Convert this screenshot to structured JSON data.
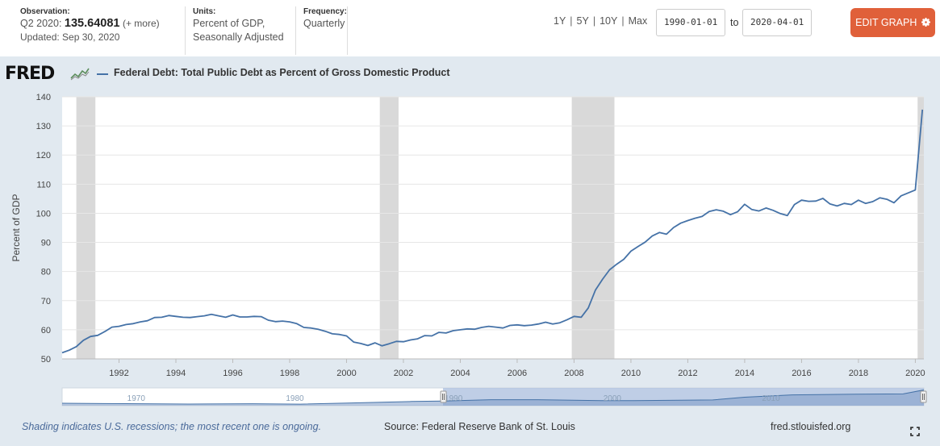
{
  "header": {
    "observation_label": "Observation:",
    "observation_period": "Q2 2020:",
    "observation_value": "135.64081",
    "observation_more": "(+ more)",
    "updated": "Updated: Sep 30, 2020",
    "units_label": "Units:",
    "units_line1": "Percent of GDP,",
    "units_line2": "Seasonally Adjusted",
    "frequency_label": "Frequency:",
    "frequency_value": "Quarterly",
    "range_links": [
      "1Y",
      "5Y",
      "10Y",
      "Max"
    ],
    "date_from": "1990-01-01",
    "to_label": "to",
    "date_to": "2020-04-01",
    "edit_button": "EDIT GRAPH"
  },
  "panel": {
    "logo": "FRED",
    "legend": "Federal Debt: Total Public Debt as Percent of Gross Domestic Product",
    "footer_note": "Shading indicates U.S. recessions; the most recent one is ongoing.",
    "footer_source": "Source: Federal Reserve Bank of St. Louis",
    "footer_site": "fred.stlouisfed.org",
    "navigator_labels": [
      "1970",
      "1980",
      "1990",
      "2000",
      "2010"
    ]
  },
  "colors": {
    "series": "#4572a7",
    "recession": "#d9d9d9",
    "panel_bg": "#e1e9f0",
    "edit_button": "#e0603a"
  },
  "chart_data": {
    "type": "line",
    "title": "Federal Debt: Total Public Debt as Percent of Gross Domestic Product",
    "xlabel": "",
    "ylabel": "Percent of GDP",
    "ylim": [
      50,
      140
    ],
    "yticks": [
      50,
      60,
      70,
      80,
      90,
      100,
      110,
      120,
      130,
      140
    ],
    "xlim": [
      1990.0,
      2020.3
    ],
    "xticks": [
      "1992",
      "1994",
      "1996",
      "1998",
      "2000",
      "2002",
      "2004",
      "2006",
      "2008",
      "2010",
      "2012",
      "2014",
      "2016",
      "2018",
      "2020"
    ],
    "grid": true,
    "legend_position": "top-left",
    "recessions": [
      [
        1990.5,
        1991.17
      ],
      [
        2001.17,
        2001.83
      ],
      [
        2007.92,
        2009.42
      ],
      [
        2020.08,
        2020.3
      ]
    ],
    "series": [
      {
        "name": "Federal Debt: Total Public Debt as Percent of Gross Domestic Product",
        "x": [
          1990.0,
          1990.25,
          1990.5,
          1990.75,
          1991.0,
          1991.25,
          1991.5,
          1991.75,
          1992.0,
          1992.25,
          1992.5,
          1992.75,
          1993.0,
          1993.25,
          1993.5,
          1993.75,
          1994.0,
          1994.25,
          1994.5,
          1994.75,
          1995.0,
          1995.25,
          1995.5,
          1995.75,
          1996.0,
          1996.25,
          1996.5,
          1996.75,
          1997.0,
          1997.25,
          1997.5,
          1997.75,
          1998.0,
          1998.25,
          1998.5,
          1998.75,
          1999.0,
          1999.25,
          1999.5,
          1999.75,
          2000.0,
          2000.25,
          2000.5,
          2000.75,
          2001.0,
          2001.25,
          2001.5,
          2001.75,
          2002.0,
          2002.25,
          2002.5,
          2002.75,
          2003.0,
          2003.25,
          2003.5,
          2003.75,
          2004.0,
          2004.25,
          2004.5,
          2004.75,
          2005.0,
          2005.25,
          2005.5,
          2005.75,
          2006.0,
          2006.25,
          2006.5,
          2006.75,
          2007.0,
          2007.25,
          2007.5,
          2007.75,
          2008.0,
          2008.25,
          2008.5,
          2008.75,
          2009.0,
          2009.25,
          2009.5,
          2009.75,
          2010.0,
          2010.25,
          2010.5,
          2010.75,
          2011.0,
          2011.25,
          2011.5,
          2011.75,
          2012.0,
          2012.25,
          2012.5,
          2012.75,
          2013.0,
          2013.25,
          2013.5,
          2013.75,
          2014.0,
          2014.25,
          2014.5,
          2014.75,
          2015.0,
          2015.25,
          2015.5,
          2015.75,
          2016.0,
          2016.25,
          2016.5,
          2016.75,
          2017.0,
          2017.25,
          2017.5,
          2017.75,
          2018.0,
          2018.25,
          2018.5,
          2018.75,
          2019.0,
          2019.25,
          2019.5,
          2019.75,
          2020.0,
          2020.25
        ],
        "values": [
          52.1,
          53.0,
          54.2,
          56.4,
          57.7,
          58.1,
          59.4,
          60.9,
          61.2,
          61.8,
          62.1,
          62.7,
          63.1,
          64.2,
          64.3,
          64.9,
          64.6,
          64.3,
          64.2,
          64.5,
          64.8,
          65.3,
          64.8,
          64.3,
          65.1,
          64.4,
          64.4,
          64.6,
          64.5,
          63.3,
          62.8,
          63.0,
          62.7,
          62.1,
          60.8,
          60.6,
          60.2,
          59.5,
          58.6,
          58.4,
          57.9,
          55.8,
          55.3,
          54.6,
          55.5,
          54.5,
          55.2,
          56.0,
          55.9,
          56.5,
          56.9,
          58.0,
          57.9,
          59.1,
          58.9,
          59.7,
          60.0,
          60.3,
          60.2,
          60.8,
          61.2,
          60.9,
          60.6,
          61.5,
          61.7,
          61.4,
          61.6,
          62.0,
          62.6,
          62.0,
          62.4,
          63.4,
          64.6,
          64.3,
          67.5,
          73.6,
          77.3,
          80.6,
          82.5,
          84.2,
          87.0,
          88.6,
          90.1,
          92.2,
          93.4,
          92.8,
          95.1,
          96.6,
          97.5,
          98.3,
          98.9,
          100.6,
          101.2,
          100.7,
          99.5,
          100.5,
          103.1,
          101.3,
          100.8,
          101.8,
          101.0,
          99.9,
          99.2,
          103.0,
          104.5,
          104.1,
          104.2,
          105.1,
          103.2,
          102.5,
          103.4,
          103.0,
          104.5,
          103.4,
          104.0,
          105.3,
          104.8,
          103.6,
          106.0,
          107.0,
          108.0,
          135.6
        ]
      }
    ]
  }
}
